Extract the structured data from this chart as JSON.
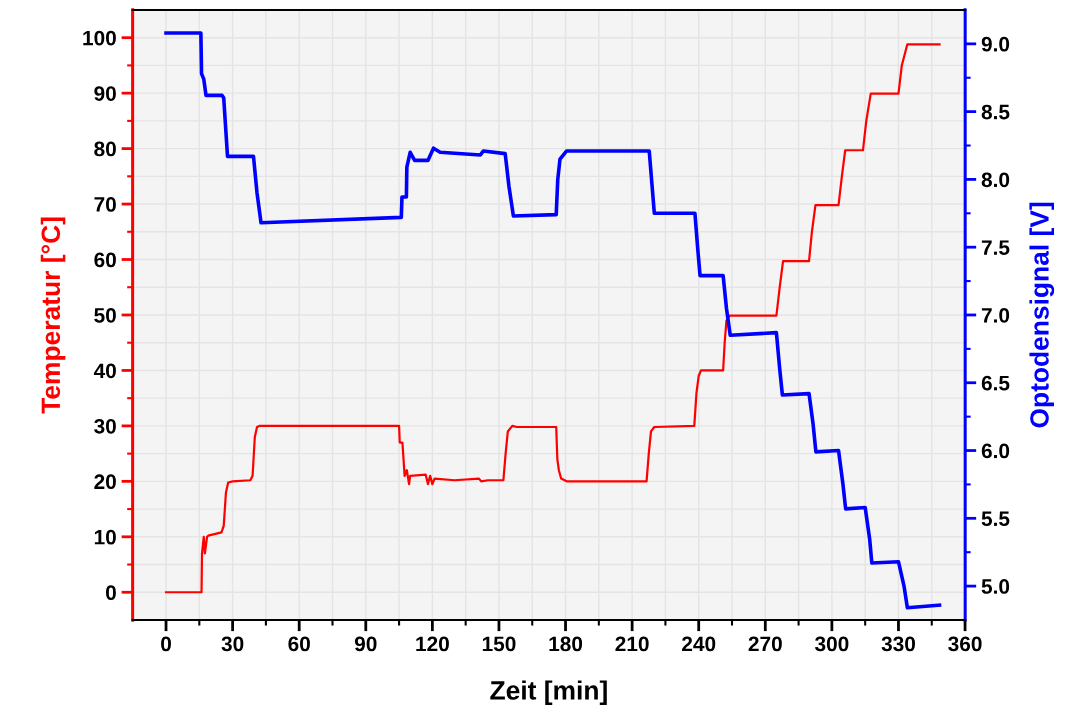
{
  "chart_data": {
    "type": "line",
    "xlabel": "Zeit [min]",
    "ylabel": "Temperatur [°C]",
    "y2label": "Optodensignal [V]",
    "xlim": [
      -15,
      360
    ],
    "ylim": [
      -5,
      105
    ],
    "y2lim": [
      4.75,
      9.25
    ],
    "xticks": [
      0,
      {
        "value": 15,
        "label": null
      },
      30,
      {
        "value": 45,
        "label": null
      },
      60,
      {
        "value": 75,
        "label": null
      },
      90,
      {
        "value": 105,
        "label": null
      },
      120,
      {
        "value": 135,
        "label": null
      },
      150,
      {
        "value": 165,
        "label": null
      },
      180,
      {
        "value": 195,
        "label": null
      },
      210,
      {
        "value": 225,
        "label": null
      },
      240,
      {
        "value": 255,
        "label": null
      },
      270,
      {
        "value": 285,
        "label": null
      },
      300,
      {
        "value": 315,
        "label": null
      },
      330,
      {
        "value": 345,
        "label": null
      },
      360
    ],
    "yticks": [
      0,
      {
        "value": 5,
        "label": null
      },
      10,
      {
        "value": 15,
        "label": null
      },
      20,
      {
        "value": 25,
        "label": null
      },
      30,
      {
        "value": 35,
        "label": null
      },
      40,
      {
        "value": 45,
        "label": null
      },
      50,
      {
        "value": 55,
        "label": null
      },
      60,
      {
        "value": 65,
        "label": null
      },
      70,
      {
        "value": 75,
        "label": null
      },
      80,
      {
        "value": 85,
        "label": null
      },
      90,
      {
        "value": 95,
        "label": null
      },
      100
    ],
    "y2ticks": [
      {
        "value": 5.0,
        "label": "5.0"
      },
      {
        "value": 5.25,
        "label": null
      },
      {
        "value": 5.5,
        "label": "5.5"
      },
      {
        "value": 5.75,
        "label": null
      },
      {
        "value": 6.0,
        "label": "6.0"
      },
      {
        "value": 6.25,
        "label": null
      },
      {
        "value": 6.5,
        "label": "6.5"
      },
      {
        "value": 6.75,
        "label": null
      },
      {
        "value": 7.0,
        "label": "7.0"
      },
      {
        "value": 7.25,
        "label": null
      },
      {
        "value": 7.5,
        "label": "7.5"
      },
      {
        "value": 7.75,
        "label": null
      },
      {
        "value": 8.0,
        "label": "8.0"
      },
      {
        "value": 8.25,
        "label": null
      },
      {
        "value": 8.5,
        "label": "8.5"
      },
      {
        "value": 8.75,
        "label": null
      },
      {
        "value": 9.0,
        "label": "9.0"
      }
    ],
    "grid": true,
    "marker": "none",
    "line_style": "solid",
    "series": [
      {
        "color": "#ff0000",
        "x": [
          0,
          16,
          16.2,
          17,
          17.5,
          18.5,
          19,
          25,
          26,
          27,
          28,
          30,
          38,
          39,
          40,
          41,
          42,
          105,
          105.3,
          106.5,
          107,
          107.5,
          108.5,
          109.5,
          110,
          117,
          118,
          119,
          120,
          121,
          130,
          141,
          142,
          145,
          152,
          153,
          154,
          156,
          158,
          175.8,
          176.3,
          177,
          178,
          180.5,
          216.5,
          217.5,
          218.5,
          220,
          238,
          239,
          240,
          241,
          251,
          251.7,
          252.5,
          254,
          275,
          276.5,
          278,
          289.7,
          291,
          292.6,
          303,
          304.5,
          306,
          314,
          315.5,
          317.5,
          330,
          331.5,
          334,
          348.5
        ],
        "values": [
          0,
          0,
          7,
          10,
          7,
          10,
          10.2,
          10.8,
          12,
          18,
          19.8,
          20,
          20.2,
          21,
          28,
          29.8,
          30,
          30,
          27,
          27,
          24,
          21,
          22,
          19.5,
          21,
          21.2,
          19.5,
          21,
          19.5,
          20.5,
          20.2,
          20.5,
          20,
          20.2,
          20.2,
          25,
          29,
          30,
          29.8,
          29.8,
          24,
          22,
          20.5,
          20,
          20,
          25,
          29,
          29.8,
          30,
          36,
          39,
          40,
          40,
          45,
          49,
          49.9,
          49.9,
          55,
          59.7,
          59.7,
          65,
          69.8,
          69.8,
          75,
          79.7,
          79.7,
          85,
          89.9,
          89.9,
          95,
          98.8,
          98.8
        ]
      },
      {
        "color": "#0000ff",
        "axis": "y2",
        "x": [
          0,
          15.7,
          16,
          17,
          18,
          25.2,
          26,
          27.7,
          39.4,
          41,
          42.8,
          106,
          106.3,
          108.3,
          108.5,
          110,
          112,
          118,
          120.5,
          123.5,
          141.6,
          143,
          152.8,
          154.5,
          156.5,
          175.8,
          176.5,
          177.5,
          180.5,
          217.7,
          219,
          220,
          238.3,
          239.5,
          240.6,
          251,
          252.5,
          254.2,
          275,
          276.5,
          277.7,
          289.7,
          291.5,
          292.8,
          303,
          305,
          306.2,
          315,
          317,
          318,
          330,
          332.5,
          334,
          348.5
        ],
        "values": [
          9.08,
          9.08,
          8.78,
          8.74,
          8.62,
          8.62,
          8.6,
          8.17,
          8.17,
          7.9,
          7.68,
          7.72,
          7.87,
          7.87,
          8.09,
          8.2,
          8.14,
          8.14,
          8.23,
          8.2,
          8.18,
          8.21,
          8.19,
          7.95,
          7.73,
          7.74,
          8.0,
          8.15,
          8.21,
          8.21,
          7.95,
          7.75,
          7.75,
          7.5,
          7.29,
          7.29,
          7.05,
          6.85,
          6.87,
          6.6,
          6.41,
          6.42,
          6.2,
          5.99,
          6.0,
          5.75,
          5.57,
          5.58,
          5.35,
          5.17,
          5.18,
          5.0,
          4.84,
          4.86
        ]
      }
    ]
  }
}
